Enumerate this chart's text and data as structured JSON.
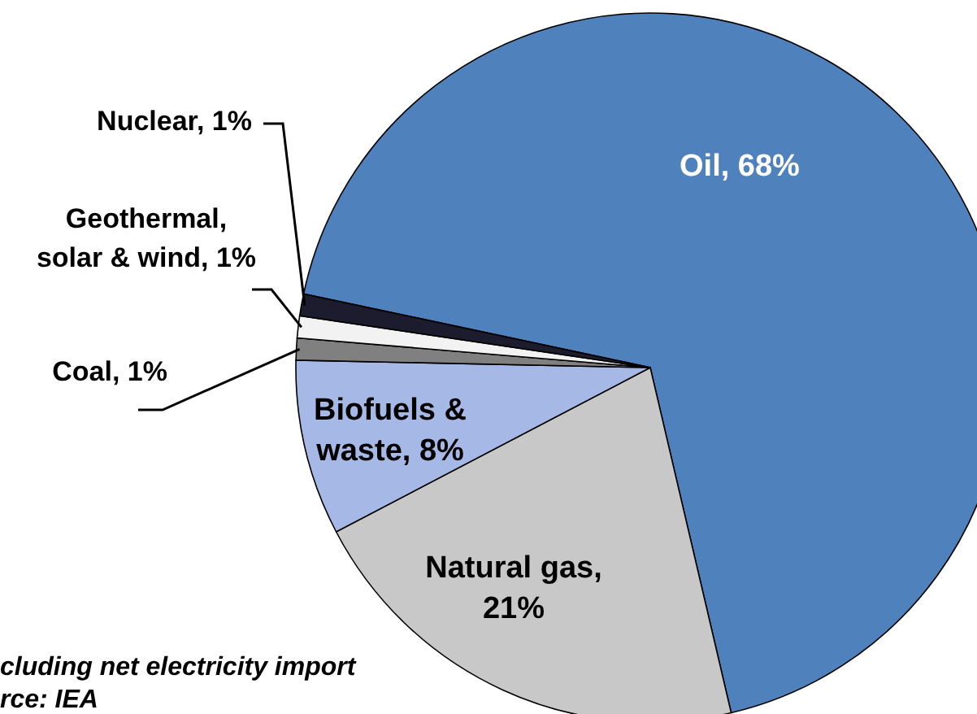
{
  "chart_data": {
    "type": "pie",
    "categories": [
      "Oil, 68%",
      "Natural gas, 21%",
      "Biofuels & waste, 8%",
      "Coal, 1%",
      "Geothermal, solar & wind, 1%",
      "Nuclear, 1%"
    ],
    "values": [
      68,
      21,
      8,
      1,
      1,
      1
    ],
    "colors": [
      "#4f81bd",
      "#c8c8c8",
      "#a6b8e6",
      "#808080",
      "#f2f2f2",
      "#1c1c2e"
    ],
    "annotations": [
      "cluding net electricity import",
      "rce:  IEA"
    ]
  }
}
